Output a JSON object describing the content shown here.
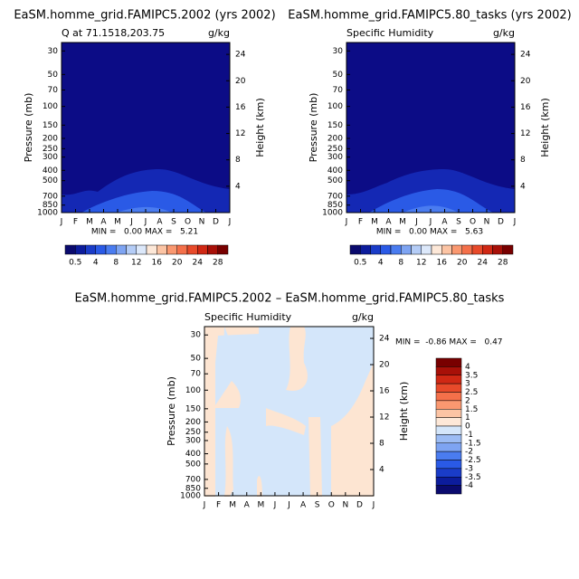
{
  "chart_data": [
    {
      "type": "contour",
      "title": "EaSM.homme_grid.FAMIPC5.2002 (yrs 2002)",
      "subtitle": "Q at 71.1518,203.75",
      "units": "g/kg",
      "ylabel": "Pressure (mb)",
      "y2label": "Height (km)",
      "log_y": true,
      "categories": [
        "J",
        "F",
        "M",
        "A",
        "M",
        "J",
        "J",
        "A",
        "S",
        "O",
        "N",
        "D",
        "J"
      ],
      "ylim": [
        1000,
        25
      ],
      "yticks": [
        30,
        50,
        70,
        100,
        150,
        200,
        250,
        300,
        400,
        500,
        700,
        850,
        1000
      ],
      "y2lim": [
        0,
        25.8
      ],
      "y2ticks": [
        4,
        8,
        12,
        16,
        20,
        24
      ],
      "stats": "MIN =   0.00 MAX =   5.21",
      "fill": "#0c0c86",
      "colorbar": {
        "colors": [
          "#0a0a6e",
          "#0c1c9c",
          "#1a3cc8",
          "#2a5ae6",
          "#4a7cf0",
          "#7ea4f2",
          "#b4ccf6",
          "#dce8fa",
          "#fde8d8",
          "#fcc4a4",
          "#fa9870",
          "#f4704a",
          "#e84a2a",
          "#d02814",
          "#a81008",
          "#780000"
        ],
        "ticks": [
          0.5,
          4,
          8,
          12,
          16,
          20,
          24,
          28
        ]
      }
    },
    {
      "type": "contour",
      "title": "EaSM.homme_grid.FAMIPC5.80_tasks (yrs 2002)",
      "subtitle": "Specific Humidity",
      "units": "g/kg",
      "ylabel": "Pressure (mb)",
      "y2label": "Height (km)",
      "log_y": true,
      "categories": [
        "J",
        "F",
        "M",
        "A",
        "M",
        "J",
        "J",
        "A",
        "S",
        "O",
        "N",
        "D",
        "J"
      ],
      "ylim": [
        1000,
        25
      ],
      "yticks": [
        30,
        50,
        70,
        100,
        150,
        200,
        250,
        300,
        400,
        500,
        700,
        850,
        1000
      ],
      "y2lim": [
        0,
        25.8
      ],
      "y2ticks": [
        4,
        8,
        12,
        16,
        20,
        24
      ],
      "stats": "MIN =   0.00 MAX =   5.63",
      "fill": "#0c0c86",
      "colorbar": {
        "colors": [
          "#0a0a6e",
          "#0c1c9c",
          "#1a3cc8",
          "#2a5ae6",
          "#4a7cf0",
          "#7ea4f2",
          "#b4ccf6",
          "#dce8fa",
          "#fde8d8",
          "#fcc4a4",
          "#fa9870",
          "#f4704a",
          "#e84a2a",
          "#d02814",
          "#a81008",
          "#780000"
        ],
        "ticks": [
          0.5,
          4,
          8,
          12,
          16,
          20,
          24,
          28
        ]
      }
    },
    {
      "type": "contour",
      "title": "EaSM.homme_grid.FAMIPC5.2002 – EaSM.homme_grid.FAMIPC5.80_tasks",
      "subtitle": "Specific Humidity",
      "units": "g/kg",
      "ylabel": "Pressure (mb)",
      "y2label": "Height (km)",
      "log_y": true,
      "categories": [
        "J",
        "F",
        "M",
        "A",
        "M",
        "J",
        "J",
        "A",
        "S",
        "O",
        "N",
        "D",
        "J"
      ],
      "ylim": [
        1000,
        25
      ],
      "yticks": [
        30,
        50,
        70,
        100,
        150,
        200,
        250,
        300,
        400,
        500,
        700,
        850,
        1000
      ],
      "y2lim": [
        0,
        25.8
      ],
      "y2ticks": [
        4,
        8,
        12,
        16,
        20,
        24
      ],
      "stats": "MIN =  -0.86 MAX =   0.47",
      "fill": "#d4e6fa",
      "colorbar": {
        "colors": [
          "#780000",
          "#a81008",
          "#d02814",
          "#e84a2a",
          "#f4704a",
          "#fa9870",
          "#fcc4a4",
          "#fde8d8",
          "#d4e6fa",
          "#9cbcf4",
          "#7ea4f2",
          "#4a7cf0",
          "#2a5ae6",
          "#1a3cc8",
          "#0c1c9c",
          "#0a0a6e"
        ],
        "ticks": [
          4,
          3.5,
          3,
          2.5,
          2,
          1.5,
          1,
          0,
          -1,
          -1.5,
          -2,
          -2.5,
          -3,
          -3.5,
          -4
        ]
      }
    }
  ]
}
